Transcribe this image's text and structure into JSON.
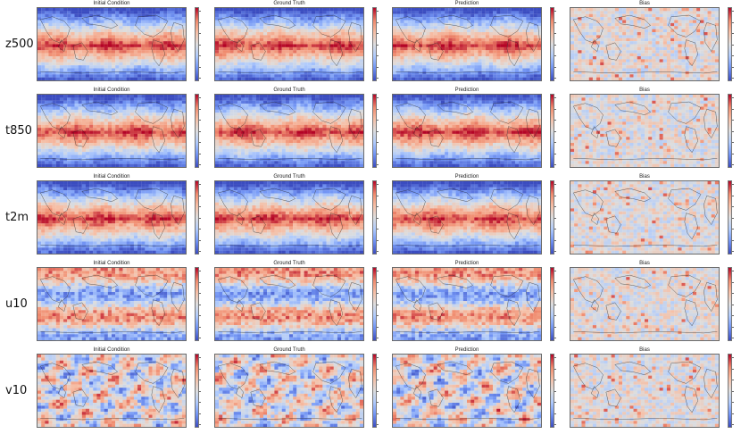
{
  "chart_data": {
    "type": "heatmap",
    "layout": "5 variable rows x 4 panels",
    "panel_titles": [
      "Initial Condition",
      "Ground Truth",
      "Prediction",
      "Bias"
    ],
    "rows": [
      {
        "variable": "z500",
        "pattern": "zonal",
        "bias_pattern": "noise"
      },
      {
        "variable": "t850",
        "pattern": "zonal",
        "bias_pattern": "noise"
      },
      {
        "variable": "t2m",
        "pattern": "zonal",
        "bias_pattern": "noise"
      },
      {
        "variable": "u10",
        "pattern": "bands",
        "bias_pattern": "noise"
      },
      {
        "variable": "v10",
        "pattern": "eddies",
        "bias_pattern": "noise"
      }
    ],
    "colormap": "coolwarm",
    "colors": {
      "cold": "#3b4cc0",
      "neutral": "#dddddd",
      "warm": "#b40426"
    },
    "coastline_color": "#222222"
  }
}
